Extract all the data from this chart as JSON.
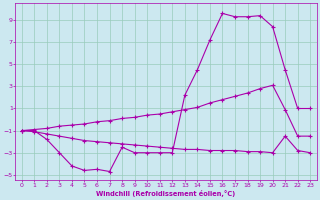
{
  "xlabel": "Windchill (Refroidissement éolien,°C)",
  "bg_color": "#cce8f0",
  "grid_color": "#99ccbb",
  "line_color": "#aa00aa",
  "xlim": [
    -0.5,
    23.5
  ],
  "ylim": [
    -5.5,
    10.5
  ],
  "xticks": [
    0,
    1,
    2,
    3,
    4,
    5,
    6,
    7,
    8,
    9,
    10,
    11,
    12,
    13,
    14,
    15,
    16,
    17,
    18,
    19,
    20,
    21,
    22,
    23
  ],
  "yticks": [
    -5,
    -3,
    -1,
    1,
    3,
    5,
    7,
    9
  ],
  "line1_x": [
    0,
    1,
    2,
    3,
    4,
    5,
    6,
    7,
    8,
    9,
    10,
    11,
    12,
    13,
    14,
    15,
    16,
    17,
    18,
    19,
    20,
    21,
    22,
    23
  ],
  "line1_y": [
    -1.0,
    -1.0,
    -1.8,
    -3.0,
    -4.2,
    -4.6,
    -4.5,
    -4.7,
    -2.5,
    -3.0,
    -3.0,
    -3.0,
    -3.0,
    2.2,
    4.5,
    7.2,
    9.6,
    9.3,
    9.3,
    9.4,
    8.4,
    4.5,
    1.0,
    1.0
  ],
  "line2_x": [
    0,
    1,
    2,
    3,
    4,
    5,
    6,
    7,
    8,
    9,
    10,
    11,
    12,
    13,
    14,
    15,
    16,
    17,
    18,
    19,
    20,
    21,
    22,
    23
  ],
  "line2_y": [
    -1.0,
    -0.9,
    -0.8,
    -0.6,
    -0.5,
    -0.4,
    -0.2,
    -0.1,
    0.1,
    0.2,
    0.4,
    0.5,
    0.7,
    0.9,
    1.1,
    1.5,
    1.8,
    2.1,
    2.4,
    2.8,
    3.1,
    0.9,
    -1.5,
    -1.5
  ],
  "line3_x": [
    0,
    1,
    2,
    3,
    4,
    5,
    6,
    7,
    8,
    9,
    10,
    11,
    12,
    13,
    14,
    15,
    16,
    17,
    18,
    19,
    20,
    21,
    22,
    23
  ],
  "line3_y": [
    -1.0,
    -1.1,
    -1.3,
    -1.5,
    -1.7,
    -1.9,
    -2.0,
    -2.1,
    -2.2,
    -2.3,
    -2.4,
    -2.5,
    -2.6,
    -2.7,
    -2.7,
    -2.8,
    -2.8,
    -2.8,
    -2.9,
    -2.9,
    -3.0,
    -1.5,
    -2.8,
    -3.0
  ]
}
